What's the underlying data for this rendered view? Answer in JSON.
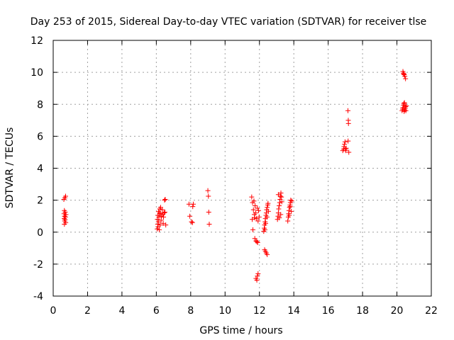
{
  "chart_data": {
    "type": "scatter",
    "title": "Day 253 of 2015, Sidereal Day-to-day VTEC variation (SDTVAR) for receiver tlse",
    "xlabel": "GPS time / hours",
    "ylabel": "SDTVAR / TECUs",
    "xlim": [
      0,
      22
    ],
    "ylim": [
      -4,
      12
    ],
    "xticks": [
      "0",
      "2",
      "4",
      "6",
      "8",
      "10",
      "12",
      "14",
      "16",
      "18",
      "20",
      "22"
    ],
    "yticks": [
      "-4",
      "-2",
      "0",
      "2",
      "4",
      "6",
      "8",
      "10",
      "12"
    ],
    "grid": true,
    "marker": "plus",
    "color": "#ff0000",
    "series": [
      {
        "name": "SDTVAR",
        "points": [
          [
            0.62,
            2.05
          ],
          [
            0.68,
            2.15
          ],
          [
            0.72,
            2.25
          ],
          [
            0.65,
            1.35
          ],
          [
            0.7,
            1.25
          ],
          [
            0.63,
            1.15
          ],
          [
            0.74,
            1.1
          ],
          [
            0.66,
            1.0
          ],
          [
            0.71,
            0.95
          ],
          [
            0.64,
            0.85
          ],
          [
            0.69,
            0.8
          ],
          [
            0.67,
            0.7
          ],
          [
            0.73,
            0.6
          ],
          [
            0.65,
            0.5
          ],
          [
            6.05,
            0.2
          ],
          [
            6.1,
            0.35
          ],
          [
            6.08,
            0.5
          ],
          [
            6.12,
            0.65
          ],
          [
            6.06,
            0.8
          ],
          [
            6.15,
            0.95
          ],
          [
            6.09,
            1.05
          ],
          [
            6.18,
            1.2
          ],
          [
            6.13,
            1.3
          ],
          [
            6.2,
            1.45
          ],
          [
            6.25,
            1.55
          ],
          [
            6.22,
            0.45
          ],
          [
            6.28,
            0.75
          ],
          [
            6.3,
            1.0
          ],
          [
            6.24,
            1.15
          ],
          [
            6.17,
            0.15
          ],
          [
            6.35,
            1.4
          ],
          [
            6.4,
            0.55
          ],
          [
            6.45,
            1.2
          ],
          [
            6.5,
            1.25
          ],
          [
            6.55,
            0.45
          ],
          [
            6.48,
            2.0
          ],
          [
            6.52,
            2.05
          ],
          [
            6.38,
            1.1
          ],
          [
            6.42,
            0.95
          ],
          [
            7.9,
            1.75
          ],
          [
            7.95,
            1.0
          ],
          [
            8.05,
            0.65
          ],
          [
            8.1,
            0.6
          ],
          [
            8.12,
            1.6
          ],
          [
            8.15,
            1.75
          ],
          [
            9.0,
            2.6
          ],
          [
            9.03,
            2.25
          ],
          [
            9.05,
            1.25
          ],
          [
            9.08,
            0.5
          ],
          [
            11.55,
            2.2
          ],
          [
            11.6,
            1.85
          ],
          [
            11.58,
            0.8
          ],
          [
            11.62,
            0.15
          ],
          [
            11.65,
            1.4
          ],
          [
            11.68,
            1.95
          ],
          [
            11.7,
            1.1
          ],
          [
            11.72,
            0.9
          ],
          [
            11.75,
            1.65
          ],
          [
            11.78,
            1.2
          ],
          [
            11.73,
            -0.4
          ],
          [
            11.8,
            -0.55
          ],
          [
            11.85,
            -0.6
          ],
          [
            11.9,
            -0.65
          ],
          [
            11.82,
            0.85
          ],
          [
            11.88,
            1.5
          ],
          [
            11.92,
            0.7
          ],
          [
            11.95,
            1.35
          ],
          [
            11.8,
            -2.9
          ],
          [
            11.85,
            -3.0
          ],
          [
            11.88,
            -2.75
          ],
          [
            11.92,
            -2.6
          ],
          [
            11.98,
            0.95
          ],
          [
            12.25,
            0.05
          ],
          [
            12.28,
            0.25
          ],
          [
            12.3,
            0.45
          ],
          [
            12.33,
            0.65
          ],
          [
            12.35,
            0.85
          ],
          [
            12.38,
            1.05
          ],
          [
            12.4,
            1.2
          ],
          [
            12.42,
            1.4
          ],
          [
            12.45,
            1.55
          ],
          [
            12.48,
            1.7
          ],
          [
            12.5,
            1.8
          ],
          [
            12.32,
            0.15
          ],
          [
            12.36,
            0.55
          ],
          [
            12.44,
            0.95
          ],
          [
            12.52,
            1.3
          ],
          [
            12.3,
            -1.1
          ],
          [
            12.35,
            -1.2
          ],
          [
            12.4,
            -1.3
          ],
          [
            12.45,
            -1.4
          ],
          [
            13.05,
            0.8
          ],
          [
            13.08,
            1.0
          ],
          [
            13.1,
            1.2
          ],
          [
            13.12,
            1.45
          ],
          [
            13.15,
            1.65
          ],
          [
            13.18,
            1.85
          ],
          [
            13.2,
            2.05
          ],
          [
            13.22,
            2.25
          ],
          [
            13.25,
            2.45
          ],
          [
            13.28,
            2.2
          ],
          [
            13.3,
            1.9
          ],
          [
            13.1,
            2.35
          ],
          [
            13.16,
            0.9
          ],
          [
            13.24,
            1.1
          ],
          [
            13.65,
            0.7
          ],
          [
            13.68,
            0.95
          ],
          [
            13.7,
            1.15
          ],
          [
            13.72,
            1.35
          ],
          [
            13.75,
            1.55
          ],
          [
            13.78,
            1.7
          ],
          [
            13.8,
            1.85
          ],
          [
            13.82,
            2.0
          ],
          [
            13.85,
            1.3
          ],
          [
            13.88,
            1.95
          ],
          [
            13.73,
            1.05
          ],
          [
            13.79,
            1.6
          ],
          [
            16.85,
            5.1
          ],
          [
            16.9,
            5.2
          ],
          [
            16.92,
            5.35
          ],
          [
            16.95,
            5.5
          ],
          [
            16.98,
            5.65
          ],
          [
            17.0,
            5.2
          ],
          [
            17.02,
            5.1
          ],
          [
            17.05,
            5.25
          ],
          [
            17.15,
            7.6
          ],
          [
            17.17,
            7.0
          ],
          [
            17.18,
            6.8
          ],
          [
            17.2,
            5.0
          ],
          [
            17.16,
            5.7
          ],
          [
            20.3,
            7.6
          ],
          [
            20.33,
            7.7
          ],
          [
            20.35,
            7.8
          ],
          [
            20.38,
            7.95
          ],
          [
            20.4,
            8.05
          ],
          [
            20.42,
            7.55
          ],
          [
            20.45,
            7.65
          ],
          [
            20.48,
            7.75
          ],
          [
            20.5,
            7.85
          ],
          [
            20.52,
            7.6
          ],
          [
            20.55,
            7.9
          ],
          [
            20.44,
            8.1
          ],
          [
            20.35,
            10.05
          ],
          [
            20.38,
            9.95
          ],
          [
            20.42,
            9.85
          ],
          [
            20.46,
            9.75
          ],
          [
            20.5,
            9.6
          ],
          [
            20.4,
            9.9
          ]
        ]
      }
    ]
  }
}
